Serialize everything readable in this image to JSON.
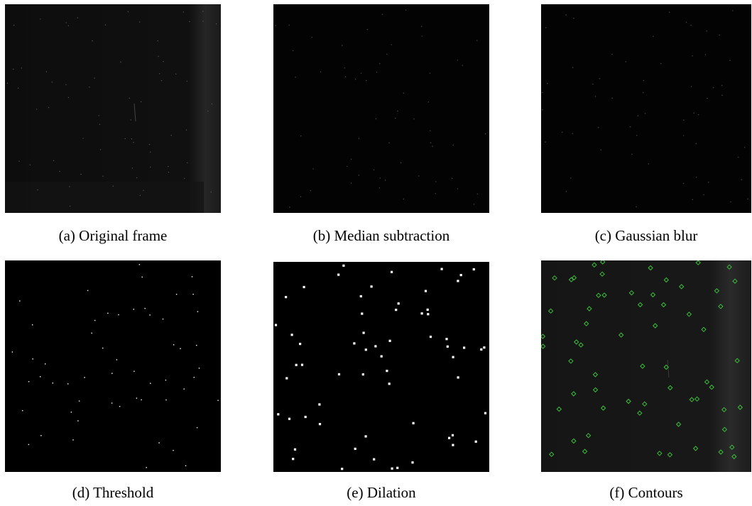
{
  "figure": {
    "panels": [
      {
        "id": "a",
        "caption": "(a) Original frame"
      },
      {
        "id": "b",
        "caption": "(b) Median subtraction"
      },
      {
        "id": "c",
        "caption": "(c) Gaussian blur"
      },
      {
        "id": "d",
        "caption": "(d) Threshold"
      },
      {
        "id": "e",
        "caption": "(e) Dilation"
      },
      {
        "id": "f",
        "caption": "(f) Contours"
      }
    ]
  },
  "colors": {
    "frame_background": "#0b0b0b",
    "processed_background": "#020202",
    "threshold_dot": "#ffffff",
    "contour_marker": "#3bbf3b"
  }
}
